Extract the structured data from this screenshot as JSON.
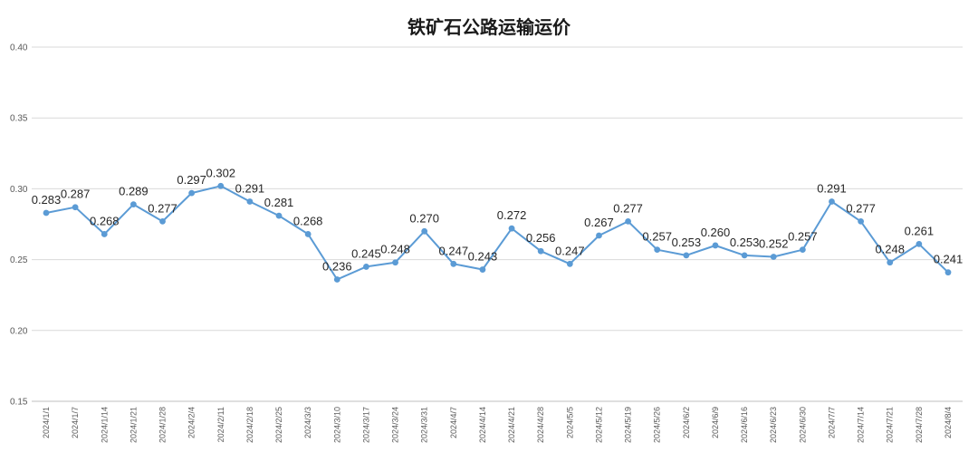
{
  "chart_data": {
    "type": "line",
    "title": "铁矿石公路运输运价",
    "xlabel": "",
    "ylabel": "",
    "ylim": [
      0.15,
      0.4
    ],
    "yticks": [
      "0.15",
      "0.20",
      "0.25",
      "0.30",
      "0.35",
      "0.40"
    ],
    "grid": true,
    "legend": "none",
    "line_color": "#5b9bd5",
    "categories": [
      "2024/1/1",
      "2024/1/7",
      "2024/1/14",
      "2024/1/21",
      "2024/1/28",
      "2024/2/4",
      "2024/2/11",
      "2024/2/18",
      "2024/2/25",
      "2024/3/3",
      "2024/3/10",
      "2024/3/17",
      "2024/3/24",
      "2024/3/31",
      "2024/4/7",
      "2024/4/14",
      "2024/4/21",
      "2024/4/28",
      "2024/5/5",
      "2024/5/12",
      "2024/5/19",
      "2024/5/26",
      "2024/6/2",
      "2024/6/9",
      "2024/6/16",
      "2024/6/23",
      "2024/6/30",
      "2024/7/7",
      "2024/7/14",
      "2024/7/21",
      "2024/7/28",
      "2024/8/4"
    ],
    "values": [
      0.283,
      0.287,
      0.268,
      0.289,
      0.277,
      0.297,
      0.302,
      0.291,
      0.281,
      0.268,
      0.236,
      0.245,
      0.248,
      0.27,
      0.247,
      0.243,
      0.272,
      0.256,
      0.247,
      0.267,
      0.277,
      0.257,
      0.253,
      0.26,
      0.253,
      0.252,
      0.257,
      0.291,
      0.277,
      0.248,
      0.261,
      0.241
    ],
    "value_labels": [
      "0.283",
      "0.287",
      "0.268",
      "0.289",
      "0.277",
      "0.297",
      "0.302",
      "0.291",
      "0.281",
      "0.268",
      "0.236",
      "0.245",
      "0.248",
      "0.270",
      "0.247",
      "0.243",
      "0.272",
      "0.256",
      "0.247",
      "0.267",
      "0.277",
      "0.257",
      "0.253",
      "0.260",
      "0.253",
      "0.252",
      "0.257",
      "0.291",
      "0.277",
      "0.248",
      "0.261",
      "0.241"
    ]
  }
}
